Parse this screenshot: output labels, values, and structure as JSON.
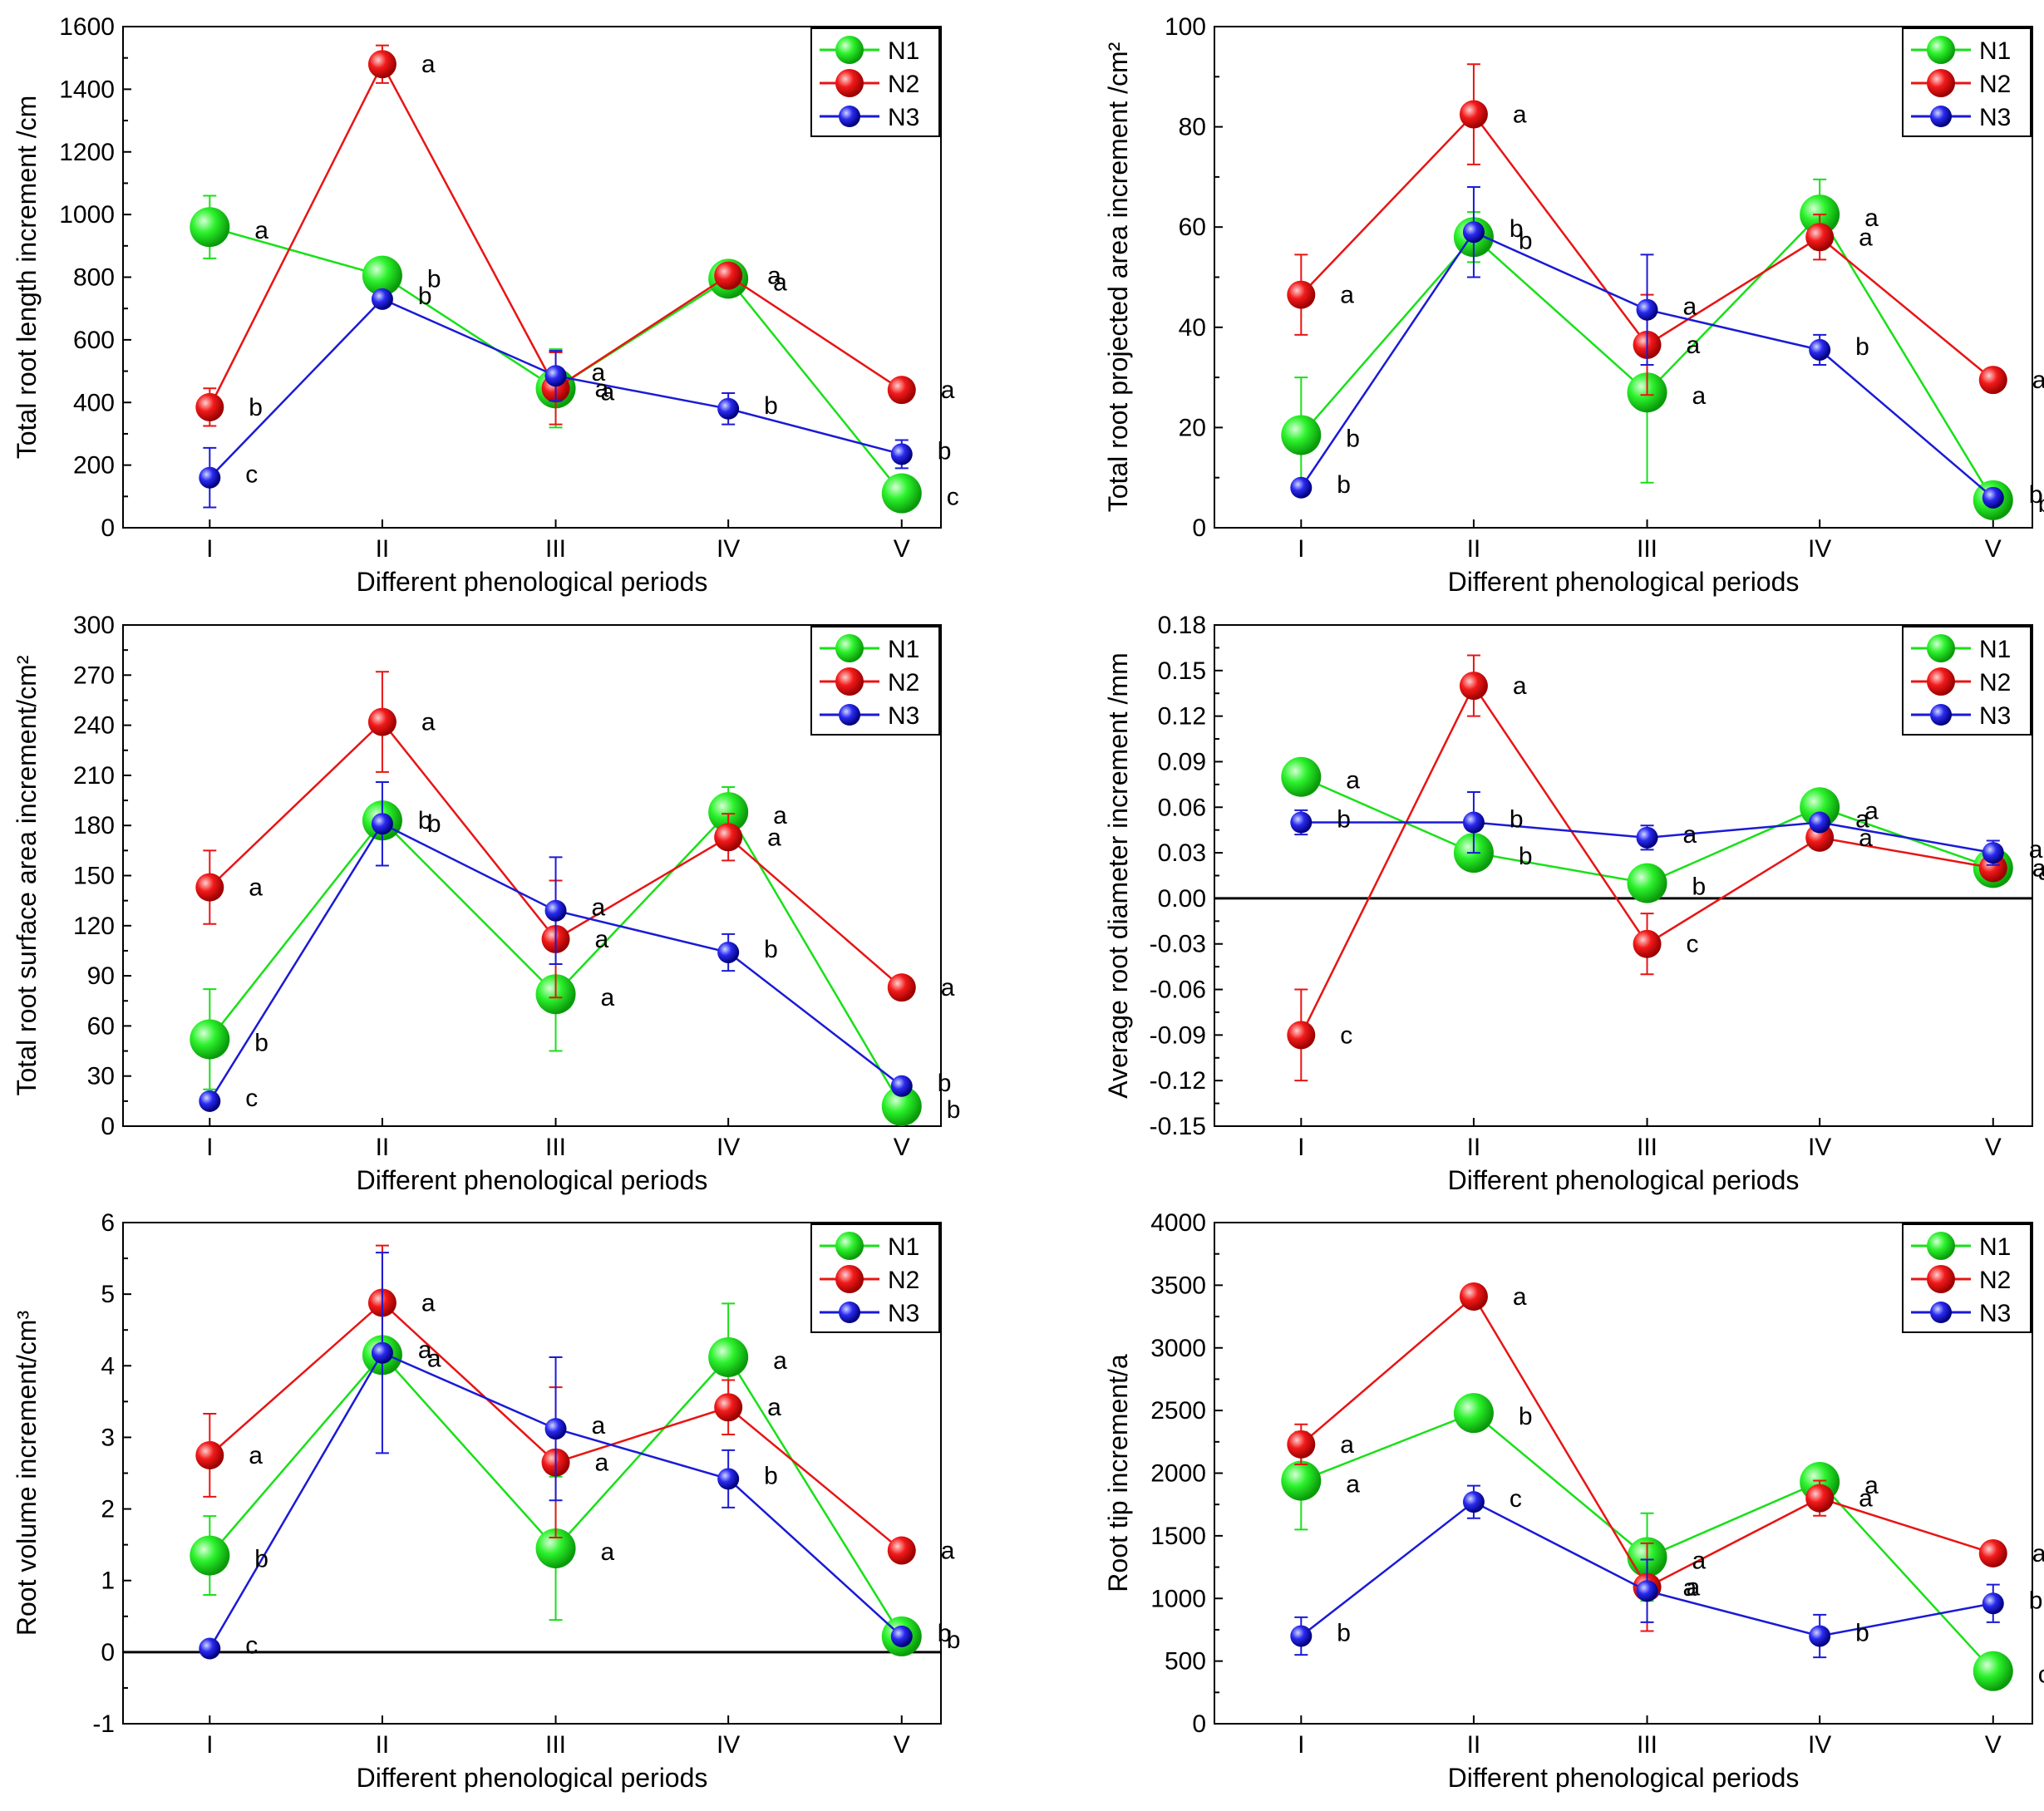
{
  "chart_data": [
    {
      "type": "line",
      "xlabel": "Different phenological periods",
      "ylabel": "Total  root  length  increment /cm",
      "categories": [
        "I",
        "II",
        "III",
        "IV",
        "V"
      ],
      "ylim": [
        0,
        1600
      ],
      "yticks": [
        "0",
        "200",
        "400",
        "600",
        "800",
        "1000",
        "1200",
        "1400",
        "1600"
      ],
      "zero_line": false,
      "series": [
        {
          "name": "N1",
          "values": [
            960,
            805,
            445,
            795,
            110
          ],
          "err": [
            100,
            20,
            125,
            15,
            20
          ],
          "letters": [
            "a",
            "b",
            "a",
            "a",
            "c"
          ]
        },
        {
          "name": "N2",
          "values": [
            385,
            1480,
            445,
            805,
            440
          ],
          "err": [
            60,
            60,
            115,
            15,
            15
          ],
          "letters": [
            "b",
            "a",
            "a",
            "a",
            "a"
          ]
        },
        {
          "name": "N3",
          "values": [
            160,
            730,
            485,
            380,
            235
          ],
          "err": [
            95,
            15,
            80,
            50,
            45
          ],
          "letters": [
            "c",
            "b",
            "a",
            "b",
            "b"
          ]
        }
      ]
    },
    {
      "type": "line",
      "xlabel": "Different phenological periods",
      "ylabel": "Total root projected area increment /cm²",
      "categories": [
        "I",
        "II",
        "III",
        "IV",
        "V"
      ],
      "ylim": [
        0,
        100
      ],
      "yticks": [
        "0",
        "20",
        "40",
        "60",
        "80",
        "100"
      ],
      "zero_line": false,
      "series": [
        {
          "name": "N1",
          "values": [
            18.5,
            58,
            27,
            62.5,
            5.5
          ],
          "err": [
            11.5,
            5,
            18,
            7,
            1
          ],
          "letters": [
            "b",
            "b",
            "a",
            "a",
            "b"
          ]
        },
        {
          "name": "N2",
          "values": [
            46.5,
            82.5,
            36.5,
            58,
            29.5
          ],
          "err": [
            8,
            10,
            10,
            4.5,
            1
          ],
          "letters": [
            "a",
            "a",
            "a",
            "a",
            "a"
          ]
        },
        {
          "name": "N3",
          "values": [
            8,
            59,
            43.5,
            35.5,
            6
          ],
          "err": [
            1.5,
            9,
            11,
            3,
            1
          ],
          "letters": [
            "b",
            "b",
            "a",
            "b",
            "b"
          ]
        }
      ]
    },
    {
      "type": "line",
      "xlabel": "Different phenological periods",
      "ylabel": "Total root surface area increment/cm²",
      "categories": [
        "I",
        "II",
        "III",
        "IV",
        "V"
      ],
      "ylim": [
        0,
        300
      ],
      "yticks": [
        "0",
        "30",
        "60",
        "90",
        "120",
        "150",
        "180",
        "210",
        "240",
        "270",
        "300"
      ],
      "zero_line": false,
      "series": [
        {
          "name": "N1",
          "values": [
            52,
            183,
            79,
            188,
            12
          ],
          "err": [
            30,
            10,
            34,
            15,
            3
          ],
          "letters": [
            "b",
            "b",
            "a",
            "a",
            "b"
          ]
        },
        {
          "name": "N2",
          "values": [
            143,
            242,
            112,
            173,
            83
          ],
          "err": [
            22,
            30,
            35,
            14,
            3
          ],
          "letters": [
            "a",
            "a",
            "a",
            "a",
            "a"
          ]
        },
        {
          "name": "N3",
          "values": [
            15,
            181,
            129,
            104,
            24
          ],
          "err": [
            4,
            25,
            32,
            11,
            3
          ],
          "letters": [
            "c",
            "b",
            "a",
            "b",
            "b"
          ]
        }
      ]
    },
    {
      "type": "line",
      "xlabel": "Different phenological periods",
      "ylabel": "Average root diameter increment /mm",
      "categories": [
        "I",
        "II",
        "III",
        "IV",
        "V"
      ],
      "ylim": [
        -0.15,
        0.18
      ],
      "yticks": [
        "-0.15",
        "-0.12",
        "-0.09",
        "-0.06",
        "-0.03",
        "0.00",
        "0.03",
        "0.06",
        "0.09",
        "0.12",
        "0.15",
        "0.18"
      ],
      "zero_line": true,
      "series": [
        {
          "name": "N1",
          "values": [
            0.08,
            0.03,
            0.01,
            0.06,
            0.02
          ],
          "err": [
            0.002,
            0.002,
            0.002,
            0.002,
            0.002
          ],
          "letters": [
            "a",
            "b",
            "b",
            "a",
            "a"
          ]
        },
        {
          "name": "N2",
          "values": [
            -0.09,
            0.14,
            -0.03,
            0.04,
            0.02
          ],
          "err": [
            0.03,
            0.02,
            0.02,
            0.005,
            0.005
          ],
          "letters": [
            "c",
            "a",
            "c",
            "a",
            "a"
          ]
        },
        {
          "name": "N3",
          "values": [
            0.05,
            0.05,
            0.04,
            0.05,
            0.03
          ],
          "err": [
            0.008,
            0.02,
            0.008,
            0.005,
            0.008
          ],
          "letters": [
            "b",
            "b",
            "a",
            "a",
            "a"
          ]
        }
      ]
    },
    {
      "type": "line",
      "xlabel": "Different phenological periods",
      "ylabel": "Root volume increment/cm³",
      "categories": [
        "I",
        "II",
        "III",
        "IV",
        "V"
      ],
      "ylim": [
        -1,
        6
      ],
      "yticks": [
        "-1",
        "0",
        "1",
        "2",
        "3",
        "4",
        "5",
        "6"
      ],
      "zero_line": true,
      "series": [
        {
          "name": "N1",
          "values": [
            1.35,
            4.15,
            1.45,
            4.12,
            0.22
          ],
          "err": [
            0.55,
            0.15,
            1.0,
            0.75,
            0.05
          ],
          "letters": [
            "b",
            "a",
            "a",
            "a",
            "b"
          ]
        },
        {
          "name": "N2",
          "values": [
            2.75,
            4.88,
            2.65,
            3.42,
            1.42
          ],
          "err": [
            0.58,
            0.8,
            1.05,
            0.38,
            0.05
          ],
          "letters": [
            "a",
            "a",
            "a",
            "a",
            "a"
          ]
        },
        {
          "name": "N3",
          "values": [
            0.05,
            4.18,
            3.12,
            2.42,
            0.22
          ],
          "err": [
            0.03,
            1.4,
            1.0,
            0.4,
            0.05
          ],
          "letters": [
            "c",
            "a",
            "a",
            "b",
            "b"
          ]
        }
      ]
    },
    {
      "type": "line",
      "xlabel": "Different phenological periods",
      "ylabel": "Root tip increment/a",
      "categories": [
        "I",
        "II",
        "III",
        "IV",
        "V"
      ],
      "ylim": [
        0,
        4000
      ],
      "yticks": [
        "0",
        "500",
        "1000",
        "1500",
        "2000",
        "2500",
        "3000",
        "3500",
        "4000"
      ],
      "zero_line": false,
      "series": [
        {
          "name": "N1",
          "values": [
            1940,
            2480,
            1330,
            1930,
            420
          ],
          "err": [
            390,
            30,
            350,
            40,
            30
          ],
          "letters": [
            "a",
            "b",
            "a",
            "a",
            "c"
          ]
        },
        {
          "name": "N2",
          "values": [
            2230,
            3410,
            1090,
            1800,
            1360
          ],
          "err": [
            160,
            30,
            350,
            140,
            30
          ],
          "letters": [
            "a",
            "a",
            "a",
            "a",
            "a"
          ]
        },
        {
          "name": "N3",
          "values": [
            700,
            1770,
            1060,
            700,
            960
          ],
          "err": [
            150,
            130,
            250,
            170,
            150
          ],
          "letters": [
            "b",
            "c",
            "a",
            "b",
            "b"
          ]
        }
      ]
    }
  ],
  "colors": {
    "N1": "#18e018",
    "N2": "#e81414",
    "N3": "#1a1ad6"
  }
}
